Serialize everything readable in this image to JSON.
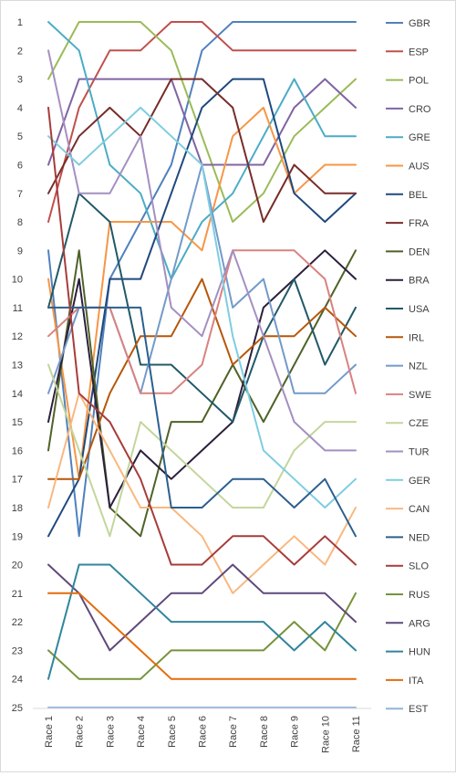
{
  "chart_data": {
    "type": "line",
    "title": "",
    "xlabel": "",
    "ylabel": "",
    "categories": [
      "Race 1",
      "Race 2",
      "Race 3",
      "Race 4",
      "Race 5",
      "Race 6",
      "Race 7",
      "Race 8",
      "Race 9",
      "Race 10",
      "Race 11"
    ],
    "ylim": [
      1,
      25
    ],
    "y_reversed": true,
    "y_ticks": [
      1,
      2,
      3,
      4,
      5,
      6,
      7,
      8,
      9,
      10,
      11,
      12,
      13,
      14,
      15,
      16,
      17,
      18,
      19,
      20,
      21,
      22,
      23,
      24,
      25
    ],
    "grid": false,
    "legend_position": "right",
    "series": [
      {
        "name": "GBR",
        "color": "#4f81bd",
        "values": [
          9,
          19,
          10,
          8,
          6,
          2,
          1,
          1,
          1,
          1,
          1
        ]
      },
      {
        "name": "ESP",
        "color": "#c0504d",
        "values": [
          8,
          4,
          2,
          2,
          1,
          1,
          2,
          2,
          2,
          2,
          2
        ]
      },
      {
        "name": "POL",
        "color": "#9bbb59",
        "values": [
          3,
          1,
          1,
          1,
          2,
          5,
          8,
          7,
          5,
          4,
          3
        ]
      },
      {
        "name": "CRO",
        "color": "#8064a2",
        "values": [
          6,
          3,
          3,
          3,
          3,
          6,
          6,
          6,
          4,
          3,
          4
        ]
      },
      {
        "name": "GRE",
        "color": "#4bacc6",
        "values": [
          1,
          2,
          6,
          7,
          10,
          8,
          7,
          5,
          3,
          5,
          5
        ]
      },
      {
        "name": "AUS",
        "color": "#f79646",
        "values": [
          10,
          17,
          8,
          8,
          8,
          9,
          5,
          4,
          7,
          6,
          6
        ]
      },
      {
        "name": "BEL",
        "color": "#1f497d",
        "values": [
          19,
          17,
          10,
          10,
          7,
          4,
          3,
          3,
          7,
          8,
          7
        ]
      },
      {
        "name": "FRA",
        "color": "#772c2a",
        "values": [
          7,
          5,
          4,
          5,
          3,
          3,
          4,
          8,
          6,
          7,
          7
        ]
      },
      {
        "name": "DEN",
        "color": "#4f6228",
        "values": [
          16,
          9,
          18,
          19,
          15,
          15,
          13,
          15,
          13,
          11,
          9
        ]
      },
      {
        "name": "BRA",
        "color": "#2c1f3d",
        "values": [
          15,
          10,
          18,
          16,
          17,
          16,
          15,
          11,
          10,
          9,
          10
        ]
      },
      {
        "name": "USA",
        "color": "#215968",
        "values": [
          11,
          7,
          8,
          13,
          13,
          14,
          15,
          12,
          10,
          13,
          11
        ]
      },
      {
        "name": "IRL",
        "color": "#b65708",
        "values": [
          17,
          17,
          14,
          12,
          12,
          10,
          13,
          12,
          12,
          11,
          12
        ]
      },
      {
        "name": "NZL",
        "color": "#729aca",
        "values": [
          14,
          11,
          11,
          14,
          10,
          6,
          11,
          10,
          14,
          14,
          13
        ]
      },
      {
        "name": "SWE",
        "color": "#d9827f",
        "values": [
          12,
          11,
          11,
          14,
          14,
          13,
          9,
          9,
          9,
          10,
          14
        ]
      },
      {
        "name": "CZE",
        "color": "#c3d69b",
        "values": [
          13,
          16,
          19,
          15,
          16,
          17,
          18,
          18,
          16,
          15,
          15
        ]
      },
      {
        "name": "TUR",
        "color": "#a48fc1",
        "values": [
          2,
          7,
          7,
          5,
          11,
          12,
          9,
          12,
          15,
          16,
          16
        ]
      },
      {
        "name": "GER",
        "color": "#7fcde0",
        "values": [
          5,
          6,
          5,
          4,
          5,
          6,
          12,
          16,
          17,
          18,
          17
        ]
      },
      {
        "name": "CAN",
        "color": "#f9b880",
        "values": [
          18,
          14,
          16,
          18,
          18,
          19,
          21,
          20,
          19,
          20,
          18
        ]
      },
      {
        "name": "NED",
        "color": "#2c5f8e",
        "values": [
          11,
          11,
          11,
          11,
          18,
          18,
          17,
          17,
          18,
          17,
          19
        ]
      },
      {
        "name": "SLO",
        "color": "#a73c3a",
        "values": [
          4,
          14,
          15,
          17,
          20,
          20,
          19,
          19,
          20,
          19,
          20
        ]
      },
      {
        "name": "RUS",
        "color": "#77933c",
        "values": [
          23,
          24,
          24,
          24,
          23,
          23,
          23,
          23,
          22,
          23,
          21
        ]
      },
      {
        "name": "ARG",
        "color": "#5f497a",
        "values": [
          20,
          21,
          23,
          22,
          21,
          21,
          20,
          21,
          21,
          21,
          22
        ]
      },
      {
        "name": "HUN",
        "color": "#31859c",
        "values": [
          24,
          20,
          20,
          21,
          22,
          22,
          22,
          22,
          23,
          22,
          23
        ]
      },
      {
        "name": "ITA",
        "color": "#e36c0a",
        "values": [
          21,
          21,
          22,
          23,
          24,
          24,
          24,
          24,
          24,
          24,
          24
        ]
      },
      {
        "name": "EST",
        "color": "#95b3d7",
        "values": [
          25,
          25,
          25,
          25,
          25,
          25,
          25,
          25,
          25,
          25,
          25
        ]
      }
    ]
  }
}
